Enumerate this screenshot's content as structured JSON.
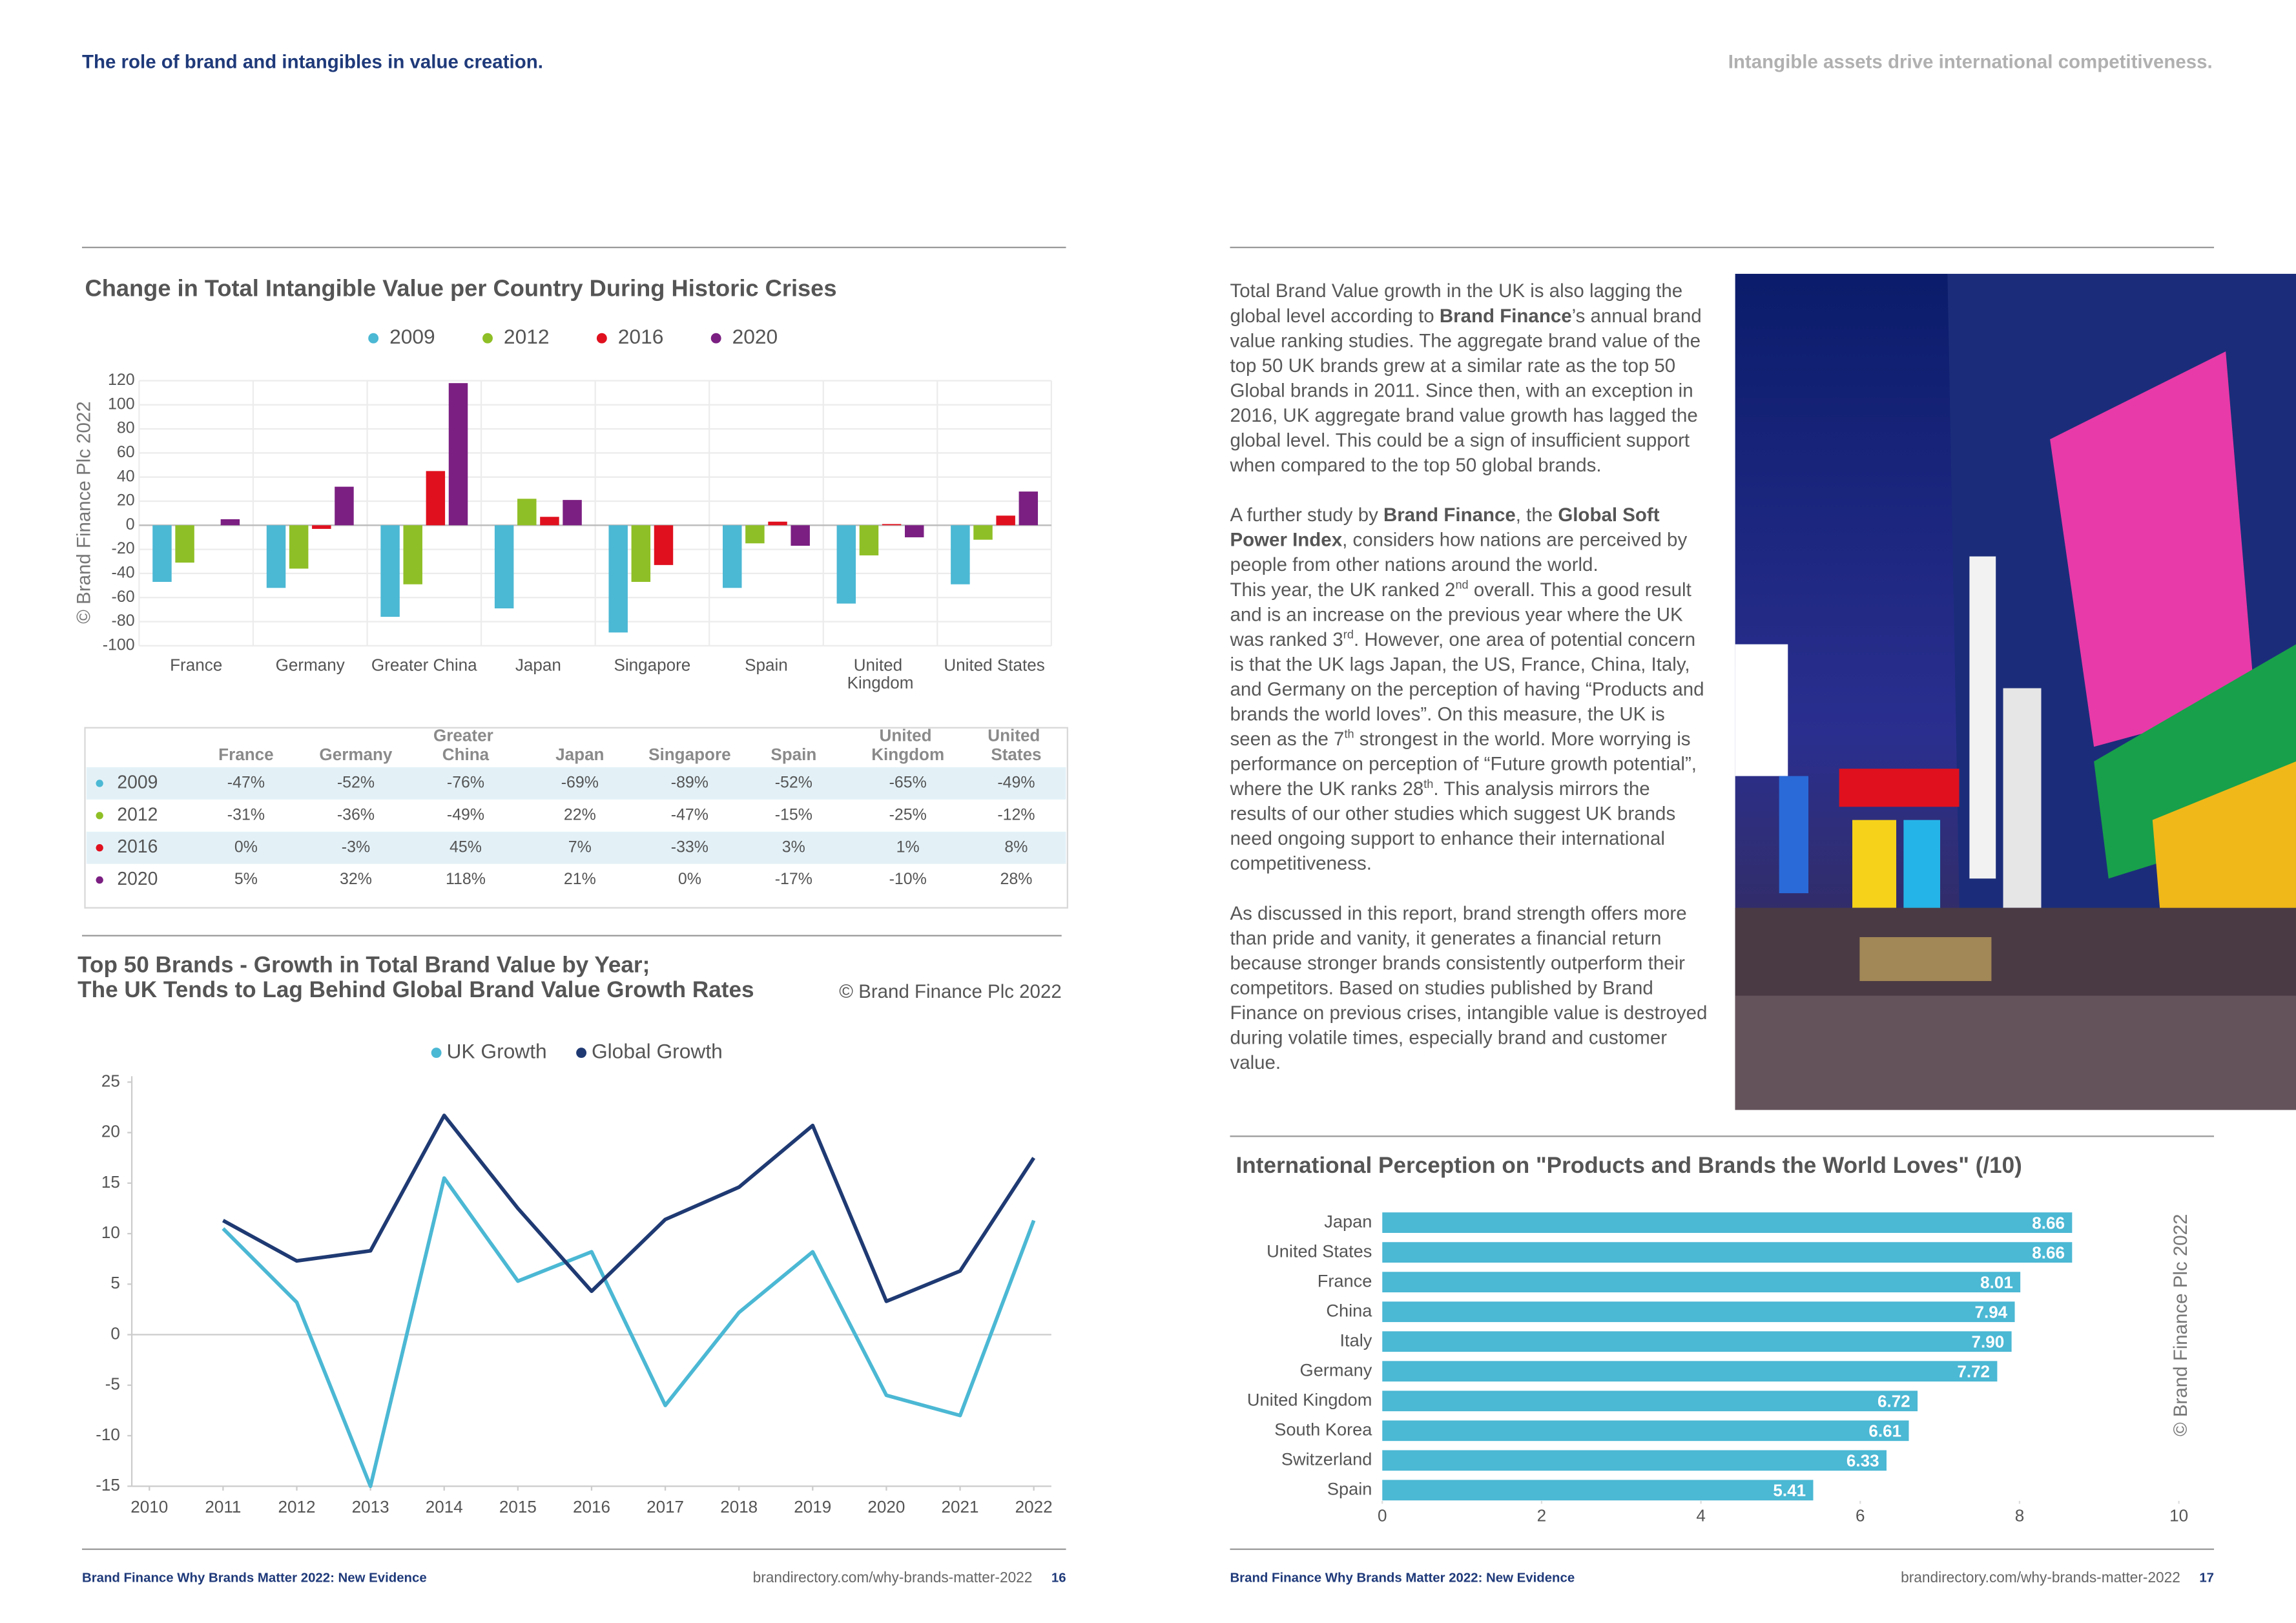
{
  "header": {
    "left": "The role of brand and intangibles in value creation.",
    "right": "Intangible assets drive international competitiveness."
  },
  "chart_data": [
    {
      "type": "bar",
      "title": "Change in Total Intangible Value per Country During Historic Crises",
      "note": "© Brand Finance Plc 2022",
      "categories": [
        "France",
        "Germany",
        "Greater China",
        "Japan",
        "Singapore",
        "Spain",
        "United Kingdom",
        "United States"
      ],
      "series": [
        {
          "name": "2009",
          "color": "#4bb8d4",
          "values": [
            -47,
            -52,
            -76,
            -69,
            -89,
            -52,
            -65,
            -49
          ]
        },
        {
          "name": "2012",
          "color": "#8fbf26",
          "values": [
            -31,
            -36,
            -49,
            22,
            -47,
            -15,
            -25,
            -12
          ]
        },
        {
          "name": "2016",
          "color": "#e0101e",
          "values": [
            0,
            -3,
            45,
            7,
            -33,
            3,
            1,
            8
          ]
        },
        {
          "name": "2020",
          "color": "#7b1f82",
          "values": [
            5,
            32,
            118,
            21,
            0,
            -17,
            -10,
            28
          ]
        }
      ],
      "ylim": [
        -100,
        120
      ],
      "yticks": [
        -100,
        -80,
        -60,
        -40,
        -20,
        0,
        20,
        40,
        60,
        80,
        100,
        120
      ],
      "grid": true,
      "legend": "top"
    },
    {
      "type": "line",
      "title": [
        "Top 50 Brands - Growth in Total Brand Value by Year;",
        "The UK Tends to Lag Behind Global Brand Value Growth Rates"
      ],
      "note": "© Brand Finance Plc 2022",
      "x": [
        2011,
        2012,
        2013,
        2014,
        2015,
        2016,
        2017,
        2018,
        2019,
        2020,
        2021,
        2022
      ],
      "series": [
        {
          "name": "UK Growth",
          "color": "#4bb8d4",
          "values": [
            10.5,
            3.2,
            -15,
            15.5,
            5.3,
            8.2,
            -7,
            2.2,
            8.2,
            -6,
            -8,
            11.3
          ]
        },
        {
          "name": "Global Growth",
          "color": "#1f3a73",
          "values": [
            11.3,
            7.3,
            8.3,
            21.7,
            12.5,
            4.3,
            11.4,
            14.6,
            20.7,
            3.3,
            6.3,
            17.5
          ]
        }
      ],
      "xlim": [
        2010,
        2022
      ],
      "xticks": [
        2010,
        2011,
        2012,
        2013,
        2014,
        2015,
        2016,
        2017,
        2018,
        2019,
        2020,
        2021,
        2022
      ],
      "ylim": [
        -15,
        25
      ],
      "yticks": [
        -15,
        -10,
        -5,
        0,
        5,
        10,
        15,
        20,
        25
      ],
      "grid": false,
      "legend": "top"
    },
    {
      "type": "barh",
      "title": "International Perception on \"Products and Brands the World Loves\" (/10)",
      "note": "© Brand Finance Plc 2022",
      "categories": [
        "Japan",
        "United States",
        "France",
        "China",
        "Italy",
        "Germany",
        "United Kingdom",
        "South Korea",
        "Switzerland",
        "Spain"
      ],
      "values": [
        8.66,
        8.66,
        8.01,
        7.94,
        7.9,
        7.72,
        6.72,
        6.61,
        6.33,
        5.41
      ],
      "value_labels": [
        "8.66",
        "8.66",
        "8.01",
        "7.94",
        "7.90",
        "7.72",
        "6.72",
        "6.61",
        "6.33",
        "5.41"
      ],
      "color": "#4bb8d4",
      "xlim": [
        0,
        10
      ],
      "xticks": [
        0,
        2,
        4,
        6,
        8,
        10
      ],
      "grid": false
    }
  ],
  "table": {
    "columns": [
      "France",
      "Germany",
      "Greater China",
      "Japan",
      "Singapore",
      "Spain",
      "United Kingdom",
      "United States"
    ],
    "rows": [
      {
        "label": "2009",
        "color": "#4bb8d4",
        "cells": [
          "-47%",
          "-52%",
          "-76%",
          "-69%",
          "-89%",
          "-52%",
          "-65%",
          "-49%"
        ]
      },
      {
        "label": "2012",
        "color": "#8fbf26",
        "cells": [
          "-31%",
          "-36%",
          "-49%",
          "22%",
          "-47%",
          "-15%",
          "-25%",
          "-12%"
        ]
      },
      {
        "label": "2016",
        "color": "#e0101e",
        "cells": [
          "0%",
          "-3%",
          "45%",
          "7%",
          "-33%",
          "3%",
          "1%",
          "8%"
        ]
      },
      {
        "label": "2020",
        "color": "#7b1f82",
        "cells": [
          "5%",
          "32%",
          "118%",
          "21%",
          "0%",
          "-17%",
          "-10%",
          "28%"
        ]
      }
    ]
  },
  "body_text": [
    {
      "runs": [
        {
          "text": "Total Brand Value growth in the UK is also lagging the global level according to "
        },
        {
          "text": "Brand Finance",
          "bold": true
        },
        {
          "text": "’s annual brand value ranking studies. The aggregate brand value of the top 50 UK brands grew at a similar rate as the top 50 Global brands in 2011. Since then, with an exception in 2016, UK aggregate brand value growth has lagged the global level. This could be a sign of insufficient support when compared to the top 50 global brands."
        }
      ]
    },
    {
      "runs": [
        {
          "text": "A further study by "
        },
        {
          "text": "Brand Finance",
          "bold": true
        },
        {
          "text": ", the "
        },
        {
          "text": "Global Soft Power Index",
          "bold": true
        },
        {
          "text": ", considers how nations are perceived by people from other nations around the world."
        }
      ]
    },
    {
      "runs": [
        {
          "text": "This year, the UK ranked 2"
        },
        {
          "text": "nd",
          "sup": true
        },
        {
          "text": " overall. This a good result and is an increase on the previous year where the UK was ranked 3"
        },
        {
          "text": "rd",
          "sup": true
        },
        {
          "text": ". However, one area of potential concern is that the UK lags Japan, the US, France, China, Italy, and Germany on the perception of having “Products and brands the world loves”. On this measure, the UK is seen as the 7"
        },
        {
          "text": "th",
          "sup": true
        },
        {
          "text": " strongest in the world. More worrying is performance on perception of “Future growth potential”, where the UK ranks 28"
        },
        {
          "text": "th",
          "sup": true
        },
        {
          "text": ". This analysis mirrors the results of our other studies which suggest UK brands need ongoing support to enhance their international competitiveness."
        }
      ]
    },
    {
      "runs": [
        {
          "text": "As discussed in this report, brand strength offers more than pride and vanity, it generates a financial return because stronger brands consistently outperform their competitors. Based on studies published by Brand Finance on previous crises, intangible value is destroyed during volatile times, especially brand and customer value."
        }
      ]
    }
  ],
  "footer": {
    "left": {
      "publication": "Brand Finance Why Brands Matter 2022: New Evidence",
      "url": "brandirectory.com/why-brands-matter-2022",
      "page": "16"
    },
    "right": {
      "publication": "Brand Finance Why Brands Matter 2022: New Evidence",
      "url": "brandirectory.com/why-brands-matter-2022",
      "page": "17"
    }
  }
}
